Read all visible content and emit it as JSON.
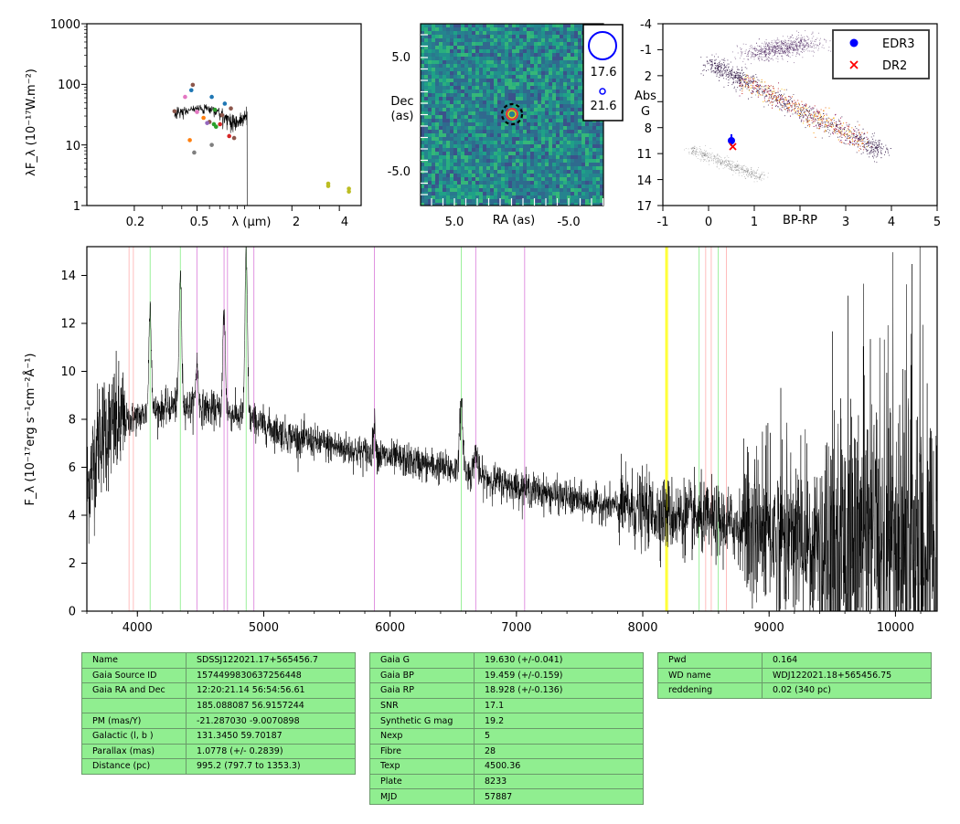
{
  "sed_panel": {
    "ylabel": "λF_λ (10⁻¹⁷W.m⁻²)",
    "xlabel": "λ (μm)",
    "yticks": [
      "1000",
      "100",
      "10",
      "1"
    ],
    "xticks": [
      "0.2",
      "0.5",
      "2",
      "4"
    ],
    "colors": {
      "phot1": "#1f77b4",
      "phot2": "#ff7f0e",
      "phot3": "#2ca02c",
      "phot4": "#d62728",
      "phot5": "#9467bd",
      "phot6": "#8c564b",
      "phot7": "#e377c2",
      "phot8": "#7f7f7f",
      "phot9": "#bcbd22"
    }
  },
  "image_panel": {
    "ylabel_1": "Dec",
    "ylabel_2": "(as)",
    "xlabel": "RA (as)",
    "yticks": [
      "5.0",
      "-5.0"
    ],
    "xticks": [
      "5.0",
      "-5.0"
    ],
    "legend": [
      "17.6",
      "21.6"
    ]
  },
  "hrd_panel": {
    "ylabel_1": "Abs",
    "ylabel_2": "G",
    "xlabel": "BP-RP",
    "yticks": [
      "-4",
      "-1",
      "2",
      "5",
      "8",
      "11",
      "14",
      "17"
    ],
    "xticks": [
      "-1",
      "0",
      "1",
      "3",
      "4",
      "5"
    ],
    "legend": [
      "EDR3",
      "DR2"
    ],
    "colors": {
      "edr3": "#0000ff",
      "dr2": "#ff0000"
    }
  },
  "chart_data": {
    "type": "line",
    "title": "",
    "xlabel": "",
    "ylabel": "F_λ (10⁻¹⁷erg s⁻¹cm⁻²Å⁻¹)",
    "xlim": [
      3600,
      10330
    ],
    "ylim": [
      0,
      15.2
    ],
    "xticks": [
      "4000",
      "5000",
      "6000",
      "7000",
      "8000",
      "9000",
      "10000"
    ],
    "yticks": [
      "0",
      "2",
      "4",
      "6",
      "8",
      "10",
      "12",
      "14"
    ],
    "continuum": [
      [
        3600,
        5.0
      ],
      [
        3700,
        7.4
      ],
      [
        3900,
        7.9
      ],
      [
        4050,
        8.2
      ],
      [
        4300,
        8.6
      ],
      [
        4500,
        8.5
      ],
      [
        4700,
        8.3
      ],
      [
        4900,
        8.0
      ],
      [
        5200,
        7.3
      ],
      [
        5600,
        6.8
      ],
      [
        6000,
        6.4
      ],
      [
        6500,
        5.9
      ],
      [
        7000,
        5.2
      ],
      [
        7500,
        4.6
      ],
      [
        8000,
        4.2
      ],
      [
        8500,
        3.8
      ],
      [
        9000,
        3.3
      ],
      [
        9500,
        2.9
      ],
      [
        10000,
        2.6
      ],
      [
        10330,
        2.3
      ]
    ],
    "emission_lines": [
      [
        4101,
        4.5
      ],
      [
        4340,
        5.6
      ],
      [
        4471,
        1.8
      ],
      [
        4686,
        4.2
      ],
      [
        4861,
        6.7
      ],
      [
        5876,
        1.2
      ],
      [
        6563,
        2.6
      ],
      [
        6678,
        1.0
      ]
    ],
    "marker_lines": [
      {
        "x": 3934,
        "color": "#ffb6b6"
      },
      {
        "x": 3968,
        "color": "#ffb6b6"
      },
      {
        "x": 4101,
        "color": "#90ee90"
      },
      {
        "x": 4340,
        "color": "#90ee90"
      },
      {
        "x": 4471,
        "color": "#dd88dd"
      },
      {
        "x": 4686,
        "color": "#dd88dd"
      },
      {
        "x": 4713,
        "color": "#dd88dd"
      },
      {
        "x": 4861,
        "color": "#90ee90"
      },
      {
        "x": 4922,
        "color": "#dd88dd"
      },
      {
        "x": 5876,
        "color": "#dd88dd"
      },
      {
        "x": 6563,
        "color": "#90ee90"
      },
      {
        "x": 6678,
        "color": "#dd88dd"
      },
      {
        "x": 7065,
        "color": "#dd88dd"
      },
      {
        "x": 8183,
        "color": "#ffff00"
      },
      {
        "x": 8195,
        "color": "#ffff00"
      },
      {
        "x": 8446,
        "color": "#90ee90"
      },
      {
        "x": 8498,
        "color": "#ffb6b6"
      },
      {
        "x": 8542,
        "color": "#ffb6b6"
      },
      {
        "x": 8598,
        "color": "#90ee90"
      },
      {
        "x": 8662,
        "color": "#ffb6b6"
      }
    ]
  },
  "table1": [
    [
      "Name",
      "SDSSJ122021.17+565456.7"
    ],
    [
      "Gaia Source ID",
      "1574499830637256448"
    ],
    [
      "Gaia RA and Dec",
      "12:20:21.14     56:54:56.61"
    ],
    [
      "",
      "185.088087     56.9157244"
    ],
    [
      "PM (mas/Y)",
      "-21.287030     -9.0070898"
    ],
    [
      "Galactic (l, b )",
      "131.3450     59.70187"
    ],
    [
      "Parallax (mas)",
      "1.0778 (+/- 0.2839)"
    ],
    [
      "Distance (pc)",
      "995.2 (797.7 to 1353.3)"
    ]
  ],
  "table2": [
    [
      "Gaia G",
      "19.630 (+/-0.041)"
    ],
    [
      "Gaia BP",
      "19.459 (+/-0.159)"
    ],
    [
      "Gaia RP",
      "18.928 (+/-0.136)"
    ],
    [
      "SNR",
      "17.1"
    ],
    [
      "Synthetic G mag",
      "19.2"
    ],
    [
      "Nexp",
      "5"
    ],
    [
      "Fibre",
      "28"
    ],
    [
      "Texp",
      "4500.36"
    ],
    [
      "Plate",
      "8233"
    ],
    [
      "MJD",
      "57887"
    ]
  ],
  "table3": [
    [
      "Pwd",
      "0.164"
    ],
    [
      "WD name",
      "WDJ122021.18+565456.75"
    ],
    [
      "reddening",
      "0.02 (340 pc)"
    ]
  ]
}
